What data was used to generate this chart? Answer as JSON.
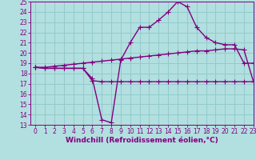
{
  "x_upper": [
    0,
    1,
    2,
    3,
    4,
    5,
    6,
    7,
    8,
    9,
    10,
    11,
    12,
    13,
    14,
    15,
    16,
    17,
    18,
    19,
    20,
    21,
    22,
    23
  ],
  "y_upper": [
    18.6,
    18.5,
    18.5,
    18.5,
    18.5,
    18.5,
    17.5,
    13.5,
    13.2,
    19.3,
    21.0,
    22.5,
    22.5,
    23.2,
    24.0,
    25.0,
    24.5,
    22.5,
    21.5,
    21.0,
    20.8,
    20.8,
    19.0,
    19.0
  ],
  "x_lower": [
    0,
    1,
    2,
    3,
    4,
    5,
    6,
    7,
    8,
    9,
    10,
    11,
    12,
    13,
    14,
    15,
    16,
    17,
    18,
    19,
    20,
    21,
    22,
    23
  ],
  "y_lower": [
    18.6,
    18.5,
    18.5,
    18.5,
    18.5,
    18.5,
    17.3,
    17.2,
    17.2,
    17.2,
    17.2,
    17.2,
    17.2,
    17.2,
    17.2,
    17.2,
    17.2,
    17.2,
    17.2,
    17.2,
    17.2,
    17.2,
    17.2,
    17.2
  ],
  "x_smooth": [
    0,
    1,
    2,
    3,
    4,
    5,
    6,
    7,
    8,
    9,
    10,
    11,
    12,
    13,
    14,
    15,
    16,
    17,
    18,
    19,
    20,
    21,
    22,
    23
  ],
  "y_smooth": [
    18.6,
    18.6,
    18.7,
    18.8,
    18.9,
    19.0,
    19.1,
    19.2,
    19.3,
    19.4,
    19.5,
    19.6,
    19.7,
    19.8,
    19.9,
    20.0,
    20.1,
    20.2,
    20.2,
    20.3,
    20.4,
    20.4,
    20.3,
    17.2
  ],
  "color": "#800080",
  "bg_color": "#b2dfdf",
  "grid_color": "#90c8c8",
  "xlabel": "Windchill (Refroidissement éolien,°C)",
  "ylim": [
    13,
    25
  ],
  "xlim": [
    -0.5,
    23
  ],
  "yticks": [
    13,
    14,
    15,
    16,
    17,
    18,
    19,
    20,
    21,
    22,
    23,
    24,
    25
  ],
  "xticks": [
    0,
    1,
    2,
    3,
    4,
    5,
    6,
    7,
    8,
    9,
    10,
    11,
    12,
    13,
    14,
    15,
    16,
    17,
    18,
    19,
    20,
    21,
    22,
    23
  ],
  "marker": "+",
  "linewidth": 1.0,
  "markersize": 4,
  "tick_fontsize": 5.5,
  "label_fontsize": 6.5
}
